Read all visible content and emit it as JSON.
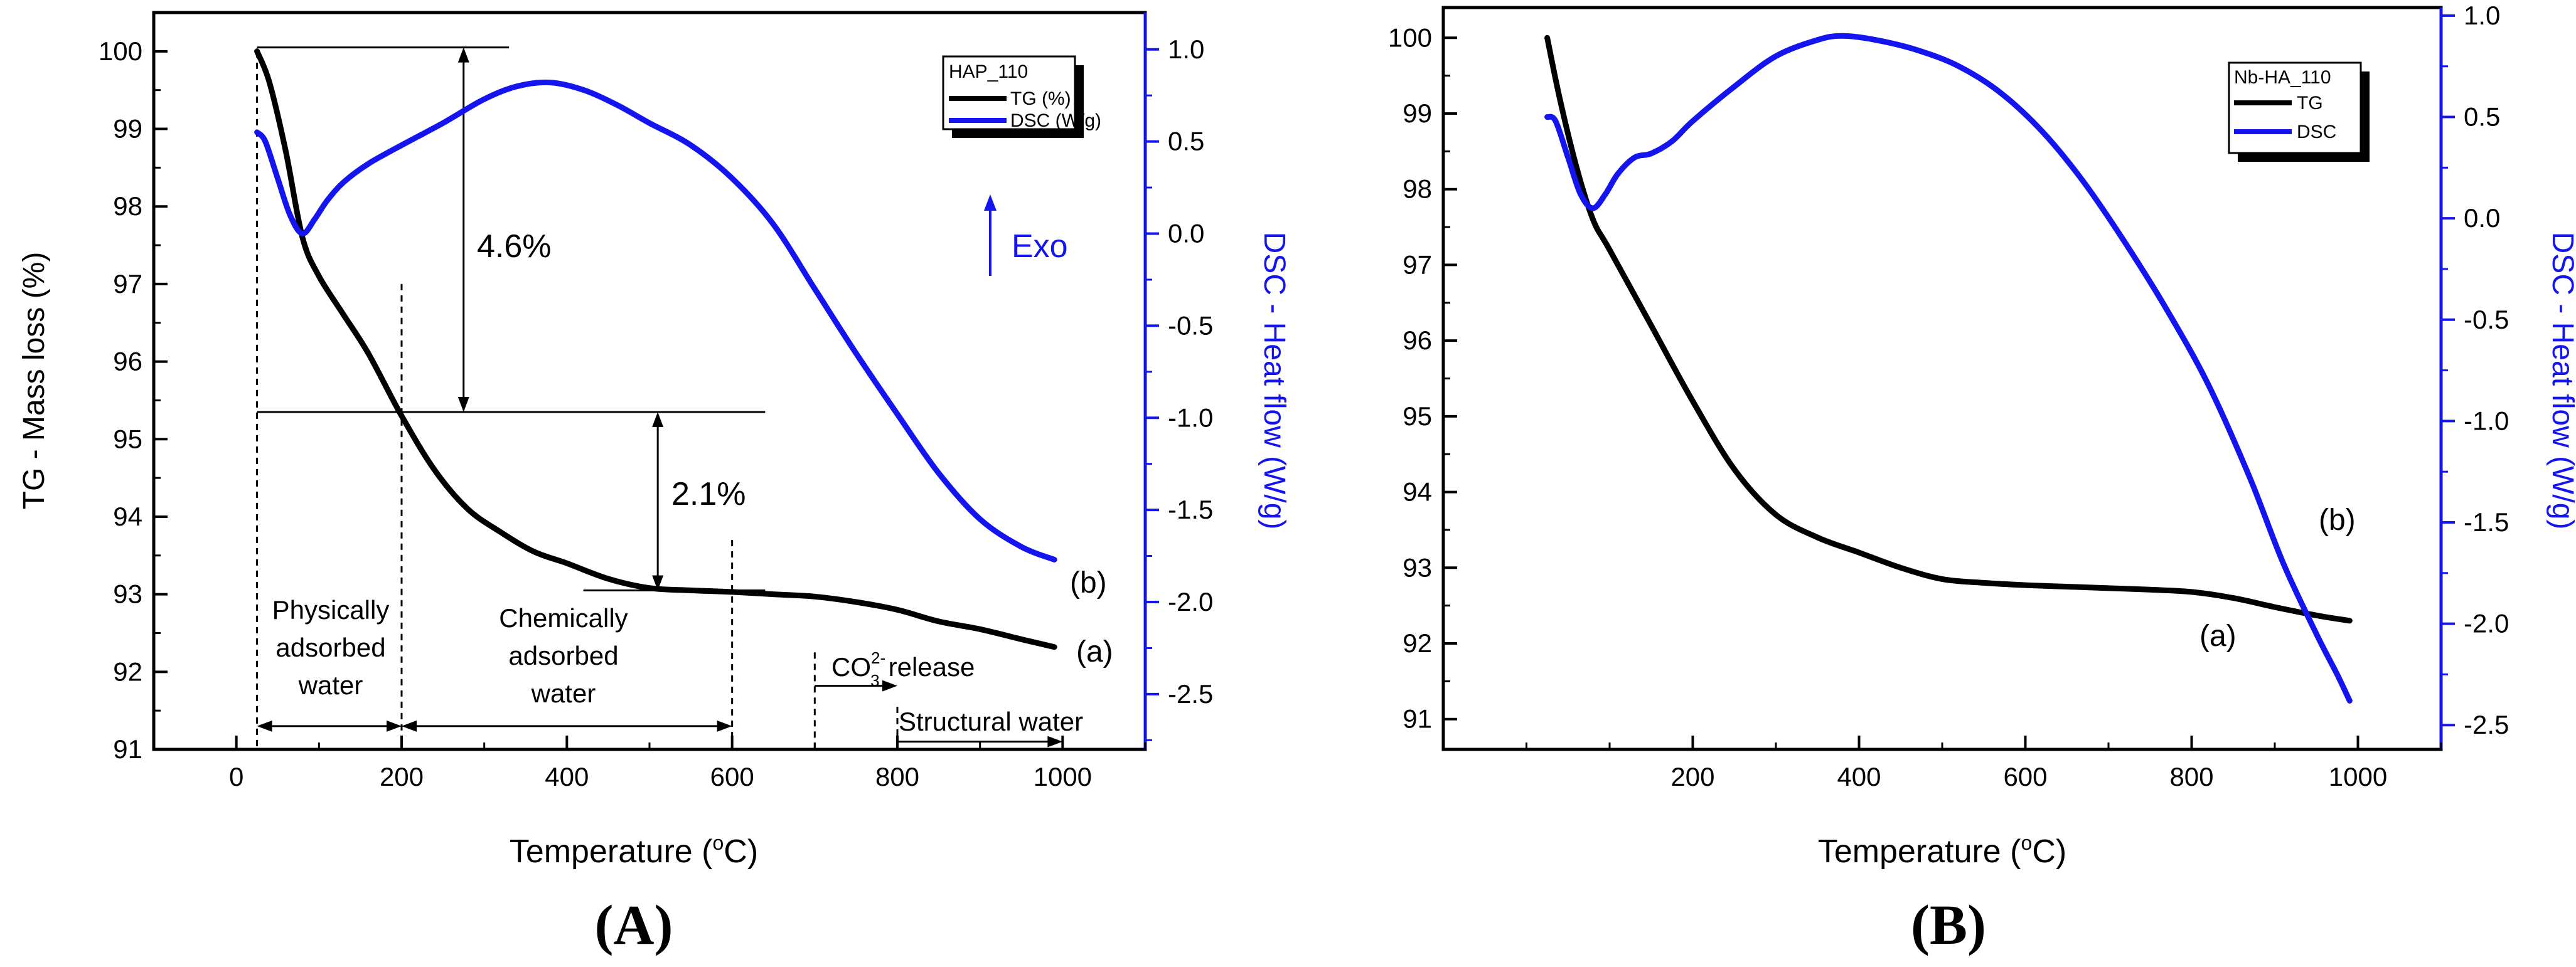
{
  "colors": {
    "tg": "#000000",
    "dsc": "#1414f0",
    "axis": "#000000",
    "right_axis": "#1414f0"
  },
  "chart_data": [
    {
      "panel": "A",
      "panel_label": "A",
      "type": "line",
      "xlabel": "Temperature (°C)",
      "xlabel_parts": {
        "pre": "Temperature (",
        "sup": "o",
        "post": "C)"
      },
      "ylabel_left": "TG - Mass loss (%)",
      "ylabel_right": "DSC - Heat flow (W/g)",
      "xlim": [
        -100,
        1100
      ],
      "ylim_left": [
        91,
        100.5
      ],
      "ylim_right": [
        -2.8,
        1.2
      ],
      "x_ticks": [
        0,
        200,
        400,
        600,
        800,
        1000
      ],
      "y_left_ticks": [
        91,
        92,
        93,
        94,
        95,
        96,
        97,
        98,
        99,
        100
      ],
      "y_right_ticks": [
        1.0,
        0.5,
        0.0,
        -0.5,
        -1.0,
        -1.5,
        -2.0,
        -2.5
      ],
      "y_right_tick_labels": [
        "1.0",
        "0.5",
        "0.0",
        "-0.5",
        "-1.0",
        "-1.5",
        "-2.0",
        "-2.5"
      ],
      "legend": {
        "title": "HAP_110",
        "entries": [
          "TG (%)",
          "DSC (W/g)"
        ],
        "position": "top-right"
      },
      "series": [
        {
          "name": "TG (%)",
          "axis": "left",
          "color": "#000000",
          "x": [
            25,
            40,
            60,
            80,
            100,
            130,
            160,
            200,
            240,
            280,
            320,
            360,
            400,
            450,
            500,
            550,
            600,
            650,
            700,
            750,
            800,
            850,
            900,
            950,
            990
          ],
          "y": [
            100.0,
            99.6,
            98.7,
            97.6,
            97.1,
            96.6,
            96.1,
            95.3,
            94.6,
            94.1,
            93.8,
            93.55,
            93.4,
            93.2,
            93.08,
            93.05,
            93.03,
            93.0,
            92.97,
            92.9,
            92.8,
            92.65,
            92.55,
            92.42,
            92.32
          ]
        },
        {
          "name": "DSC (W/g)",
          "axis": "right",
          "color": "#1414f0",
          "x": [
            25,
            35,
            50,
            65,
            80,
            95,
            110,
            130,
            160,
            200,
            250,
            300,
            340,
            380,
            420,
            460,
            500,
            550,
            600,
            650,
            700,
            750,
            800,
            850,
            900,
            950,
            990
          ],
          "y": [
            0.55,
            0.5,
            0.3,
            0.1,
            0.0,
            0.08,
            0.18,
            0.28,
            0.38,
            0.48,
            0.6,
            0.73,
            0.8,
            0.82,
            0.78,
            0.7,
            0.6,
            0.48,
            0.3,
            0.05,
            -0.3,
            -0.65,
            -0.98,
            -1.3,
            -1.55,
            -1.7,
            -1.77
          ]
        }
      ],
      "annotations": {
        "exo_label": "Exo",
        "pct1": "4.6%",
        "pct2": "2.1%",
        "curve_a": "(a)",
        "curve_b": "(b)",
        "phys_line1": "Physically",
        "phys_line2": "adsorbed",
        "phys_line3": "water",
        "chem_line1": "Chemically",
        "chem_line2": "adsorbed",
        "chem_line3": "water",
        "co3_base": "CO",
        "co3_sub": "3",
        "co3_sup": "2-",
        "co3_release": "release",
        "structural_water": "Structural water"
      }
    },
    {
      "panel": "B",
      "panel_label": "B",
      "type": "line",
      "xlabel": "Temperature (°C)",
      "xlabel_parts": {
        "pre": "Temperature (",
        "sup": "o",
        "post": "C)"
      },
      "ylabel_right": "DSC - Heat flow (W/g)",
      "xlim": [
        -100,
        1100
      ],
      "ylim_left": [
        90.6,
        100.4
      ],
      "ylim_right": [
        -2.62,
        1.04
      ],
      "x_ticks": [
        200,
        400,
        600,
        800,
        1000
      ],
      "x_tick_labels": [
        "200",
        "400",
        "600",
        "800",
        "1000"
      ],
      "y_left_ticks": [
        91,
        92,
        93,
        94,
        95,
        96,
        97,
        98,
        99,
        100
      ],
      "y_right_ticks": [
        1.0,
        0.5,
        0.0,
        -0.5,
        -1.0,
        -1.5,
        -2.0,
        -2.5
      ],
      "y_right_tick_labels": [
        "1.0",
        "0.5",
        "0.0",
        "-0.5",
        "-1.0",
        "-1.5",
        "-2.0",
        "-2.5"
      ],
      "legend": {
        "title": "Nb-HA_110",
        "entries": [
          "TG",
          "DSC"
        ],
        "position": "top-right"
      },
      "series": [
        {
          "name": "TG",
          "axis": "left",
          "color": "#000000",
          "x": [
            25,
            40,
            60,
            80,
            100,
            150,
            200,
            250,
            300,
            350,
            400,
            450,
            500,
            550,
            600,
            650,
            700,
            750,
            800,
            850,
            900,
            950,
            990
          ],
          "y": [
            100.0,
            99.2,
            98.3,
            97.6,
            97.2,
            96.2,
            95.2,
            94.3,
            93.7,
            93.4,
            93.2,
            93.0,
            92.85,
            92.8,
            92.77,
            92.75,
            92.73,
            92.71,
            92.68,
            92.6,
            92.48,
            92.37,
            92.3
          ]
        },
        {
          "name": "DSC",
          "axis": "right",
          "color": "#1414f0",
          "x": [
            25,
            35,
            50,
            65,
            80,
            95,
            110,
            130,
            150,
            175,
            200,
            250,
            300,
            350,
            380,
            420,
            470,
            520,
            570,
            620,
            670,
            720,
            770,
            820,
            870,
            910,
            950,
            975,
            990
          ],
          "y": [
            0.5,
            0.48,
            0.3,
            0.12,
            0.05,
            0.12,
            0.22,
            0.3,
            0.32,
            0.38,
            0.48,
            0.65,
            0.8,
            0.88,
            0.9,
            0.88,
            0.83,
            0.75,
            0.62,
            0.43,
            0.18,
            -0.12,
            -0.45,
            -0.82,
            -1.28,
            -1.7,
            -2.05,
            -2.25,
            -2.38
          ]
        }
      ],
      "annotations": {
        "curve_a": "(a)",
        "curve_b": "(b)"
      }
    }
  ]
}
